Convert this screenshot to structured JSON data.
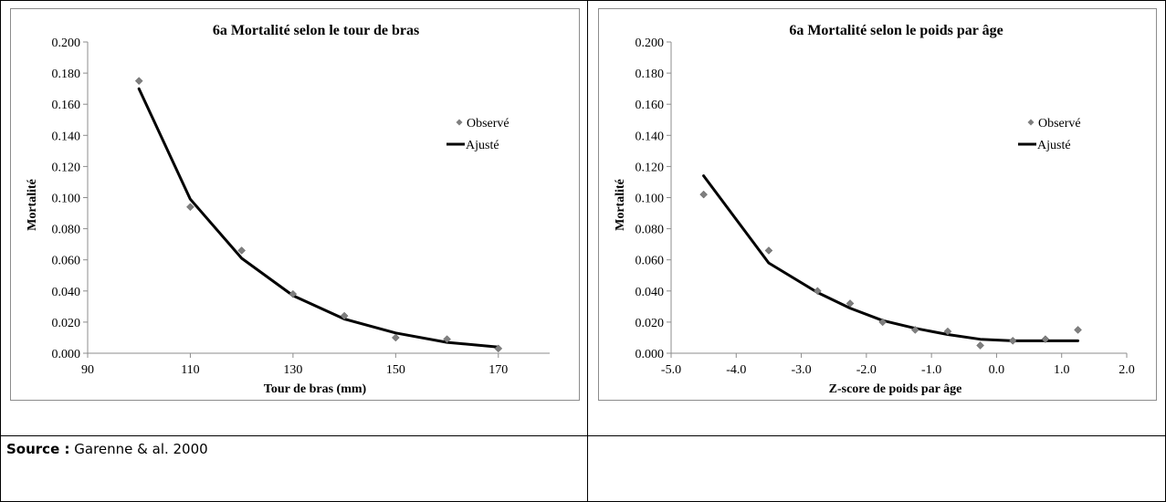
{
  "source": {
    "label": "Source :",
    "text": "Garenne & al. 2000"
  },
  "chart_data": [
    {
      "type": "scatter",
      "title": "6a Mortalité selon le tour de bras",
      "xlabel": "Tour de bras (mm)",
      "ylabel": "Mortalité",
      "xlim": [
        90,
        180
      ],
      "ylim": [
        0,
        0.2
      ],
      "x_ticks": [
        "90",
        "110",
        "130",
        "150",
        "170"
      ],
      "y_ticks": [
        "0.000",
        "0.020",
        "0.040",
        "0.060",
        "0.080",
        "0.100",
        "0.120",
        "0.140",
        "0.160",
        "0.180",
        "0.200"
      ],
      "legend_position": "right",
      "grid": false,
      "series": [
        {
          "name": "Observé",
          "kind": "markers",
          "color": "#7f7f7f",
          "x": [
            100,
            110,
            120,
            130,
            140,
            150,
            160,
            170
          ],
          "y": [
            0.175,
            0.094,
            0.066,
            0.038,
            0.024,
            0.01,
            0.009,
            0.003
          ]
        },
        {
          "name": "Ajusté",
          "kind": "line",
          "color": "#000000",
          "x": [
            100,
            110,
            120,
            130,
            140,
            150,
            160,
            170
          ],
          "y": [
            0.17,
            0.099,
            0.061,
            0.037,
            0.022,
            0.013,
            0.007,
            0.004
          ]
        }
      ]
    },
    {
      "type": "scatter",
      "title": "6a Mortalité selon le poids par âge",
      "xlabel": "Z-score de poids par âge",
      "ylabel": "Mortalité",
      "xlim": [
        -5,
        2
      ],
      "ylim": [
        0,
        0.2
      ],
      "x_ticks": [
        "-5.0",
        "-4.0",
        "-3.0",
        "-2.0",
        "-1.0",
        "0.0",
        "1.0",
        "2.0"
      ],
      "y_ticks": [
        "0.000",
        "0.020",
        "0.040",
        "0.060",
        "0.080",
        "0.100",
        "0.120",
        "0.140",
        "0.160",
        "0.180",
        "0.200"
      ],
      "legend_position": "right",
      "grid": false,
      "series": [
        {
          "name": "Observé",
          "kind": "markers",
          "color": "#7f7f7f",
          "x": [
            -4.5,
            -3.5,
            -2.75,
            -2.25,
            -1.75,
            -1.25,
            -0.75,
            -0.25,
            0.25,
            0.75,
            1.25
          ],
          "y": [
            0.102,
            0.066,
            0.04,
            0.032,
            0.02,
            0.015,
            0.014,
            0.005,
            0.008,
            0.009,
            0.015
          ]
        },
        {
          "name": "Ajusté",
          "kind": "line",
          "color": "#000000",
          "x": [
            -4.5,
            -3.5,
            -2.75,
            -2.25,
            -1.75,
            -1.25,
            -0.75,
            -0.25,
            0.25,
            0.75,
            1.25
          ],
          "y": [
            0.114,
            0.058,
            0.039,
            0.029,
            0.021,
            0.016,
            0.012,
            0.009,
            0.008,
            0.008,
            0.008
          ]
        }
      ]
    }
  ]
}
